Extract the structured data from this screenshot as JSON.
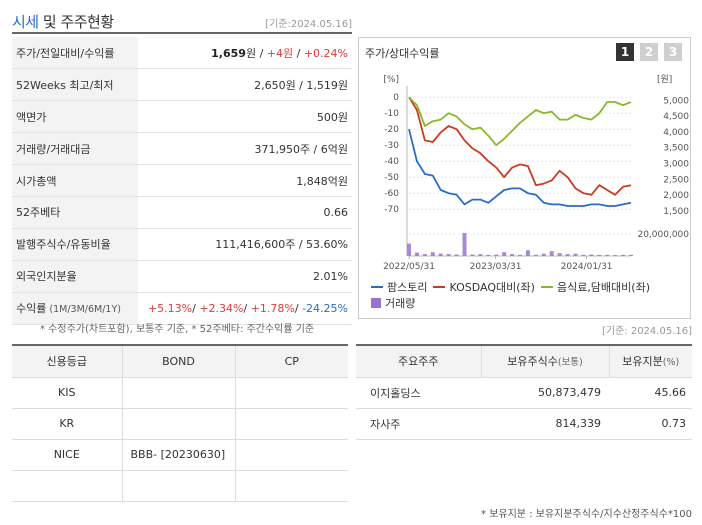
{
  "header": {
    "title_main": "시세",
    "title_rest": " 및 주주현황",
    "date": "[기준:2024.05.16]"
  },
  "summary": [
    {
      "label": "주가/전일대비/수익률",
      "parts": [
        {
          "t": "1,659",
          "c": "bold"
        },
        {
          "t": "원 / ",
          "c": ""
        },
        {
          "t": "+4원",
          "c": "red"
        },
        {
          "t": " / ",
          "c": ""
        },
        {
          "t": "+0.24%",
          "c": "red"
        }
      ]
    },
    {
      "label": "52Weeks 최고/최저",
      "parts": [
        {
          "t": "2,650원 / 1,519원",
          "c": ""
        }
      ]
    },
    {
      "label": "액면가",
      "parts": [
        {
          "t": "500원",
          "c": ""
        }
      ]
    },
    {
      "label": "거래량/거래대금",
      "parts": [
        {
          "t": "371,950주 / 6억원",
          "c": ""
        }
      ]
    },
    {
      "label": "시가총액",
      "parts": [
        {
          "t": "1,848억원",
          "c": ""
        }
      ]
    },
    {
      "label": "52주베타",
      "parts": [
        {
          "t": "0.66",
          "c": ""
        }
      ]
    },
    {
      "label": "발행주식수/유동비율",
      "parts": [
        {
          "t": "111,416,600주 / 53.60%",
          "c": ""
        }
      ]
    },
    {
      "label": "외국인지분율",
      "parts": [
        {
          "t": "2.01%",
          "c": ""
        }
      ]
    },
    {
      "label": "수익률",
      "label_small": " (1M/3M/6M/1Y)",
      "parts": [
        {
          "t": "+5.13%",
          "c": "red"
        },
        {
          "t": "/ ",
          "c": ""
        },
        {
          "t": "+2.34%",
          "c": "red"
        },
        {
          "t": "/ ",
          "c": ""
        },
        {
          "t": "+1.78%",
          "c": "red"
        },
        {
          "t": "/ ",
          "c": ""
        },
        {
          "t": "-24.25%",
          "c": "blue"
        }
      ]
    }
  ],
  "left_note": "* 수정주가(차트포함), 보통주 기준, * 52주베타: 주간수익률 기준",
  "chart_panel": {
    "title": "주가/상대수익률",
    "tabs": [
      "1",
      "2",
      "3"
    ],
    "active_tab": 0
  },
  "chart_data": {
    "type": "line",
    "left_axis_unit": "[%]",
    "right_axis_unit": "[원]",
    "left_ticks": [
      0,
      -10,
      -20,
      -30,
      -40,
      -50,
      -60,
      -70
    ],
    "right_ticks": [
      5000,
      4500,
      4000,
      3500,
      3000,
      2500,
      2000,
      1500
    ],
    "volume_tick": "20,000,000",
    "x_ticks": [
      "2022/05/31",
      "2023/03/31",
      "2024/01/31"
    ],
    "left_ylim": [
      -73,
      2
    ],
    "right_ylim": [
      1400,
      5200
    ],
    "volume_max": 25000000,
    "series": [
      {
        "name": "팜스토리",
        "color": "#2a6cc4",
        "axis": "left",
        "values": [
          -20,
          -40,
          -48,
          -49,
          -58,
          -60,
          -61,
          -67,
          -64,
          -64,
          -66,
          -62,
          -58,
          -57,
          -57,
          -60,
          -61,
          -66,
          -67,
          -67,
          -68,
          -68,
          -68,
          -67,
          -67,
          -68,
          -68,
          -67,
          -66
        ]
      },
      {
        "name": "KOSDAQ대비(좌)",
        "color": "#cc3a1f",
        "axis": "left",
        "values": [
          0,
          -8,
          -27,
          -28,
          -22,
          -18,
          -20,
          -27,
          -32,
          -35,
          -40,
          -44,
          -50,
          -44,
          -42,
          -43,
          -55,
          -54,
          -52,
          -46,
          -50,
          -57,
          -60,
          -61,
          -55,
          -58,
          -61,
          -56,
          -55
        ]
      },
      {
        "name": "음식료,담배대비(좌)",
        "color": "#8ab82a",
        "axis": "left",
        "values": [
          0,
          -5,
          -18,
          -15,
          -14,
          -10,
          -12,
          -17,
          -20,
          -19,
          -24,
          -30,
          -26,
          -21,
          -16,
          -12,
          -8,
          -10,
          -9,
          -14,
          -14,
          -11,
          -13,
          -14,
          -10,
          -3,
          -3,
          -5,
          -3
        ]
      },
      {
        "name": "거래량",
        "color": "#9a74cc",
        "axis": "volume",
        "values": [
          13000000,
          3500000,
          2000000,
          4000000,
          2500000,
          2000000,
          1500000,
          24000000,
          1500000,
          2000000,
          1200000,
          1500000,
          4000000,
          2000000,
          1200000,
          6000000,
          1200000,
          2500000,
          5000000,
          3000000,
          2000000,
          2500000,
          1200000,
          1500000,
          1200000,
          1200000,
          1000000,
          1200000,
          1200000
        ]
      }
    ],
    "legend": [
      "팜스토리",
      "KOSDAQ대비(좌)",
      "음식료,담배대비(좌)",
      "거래량"
    ]
  },
  "right_date": "[기준: 2024.05.16]",
  "credit": {
    "headers": [
      "신용등급",
      "BOND",
      "CP"
    ],
    "rows": [
      [
        "KIS",
        "",
        ""
      ],
      [
        "KR",
        "",
        ""
      ],
      [
        "NICE",
        "BBB-  [20230630]",
        ""
      ],
      [
        "",
        "",
        ""
      ]
    ]
  },
  "holders": {
    "headers": [
      "주요주주",
      "보유주식수",
      "(보통)",
      "보유지분",
      "(%)"
    ],
    "rows": [
      [
        "이지홀딩스",
        "50,873,479",
        "45.66"
      ],
      [
        "자사주",
        "814,339",
        "0.73"
      ]
    ]
  },
  "footer_note": "* 보유지분 : 보유지분주식수/지수산정주식수*100"
}
